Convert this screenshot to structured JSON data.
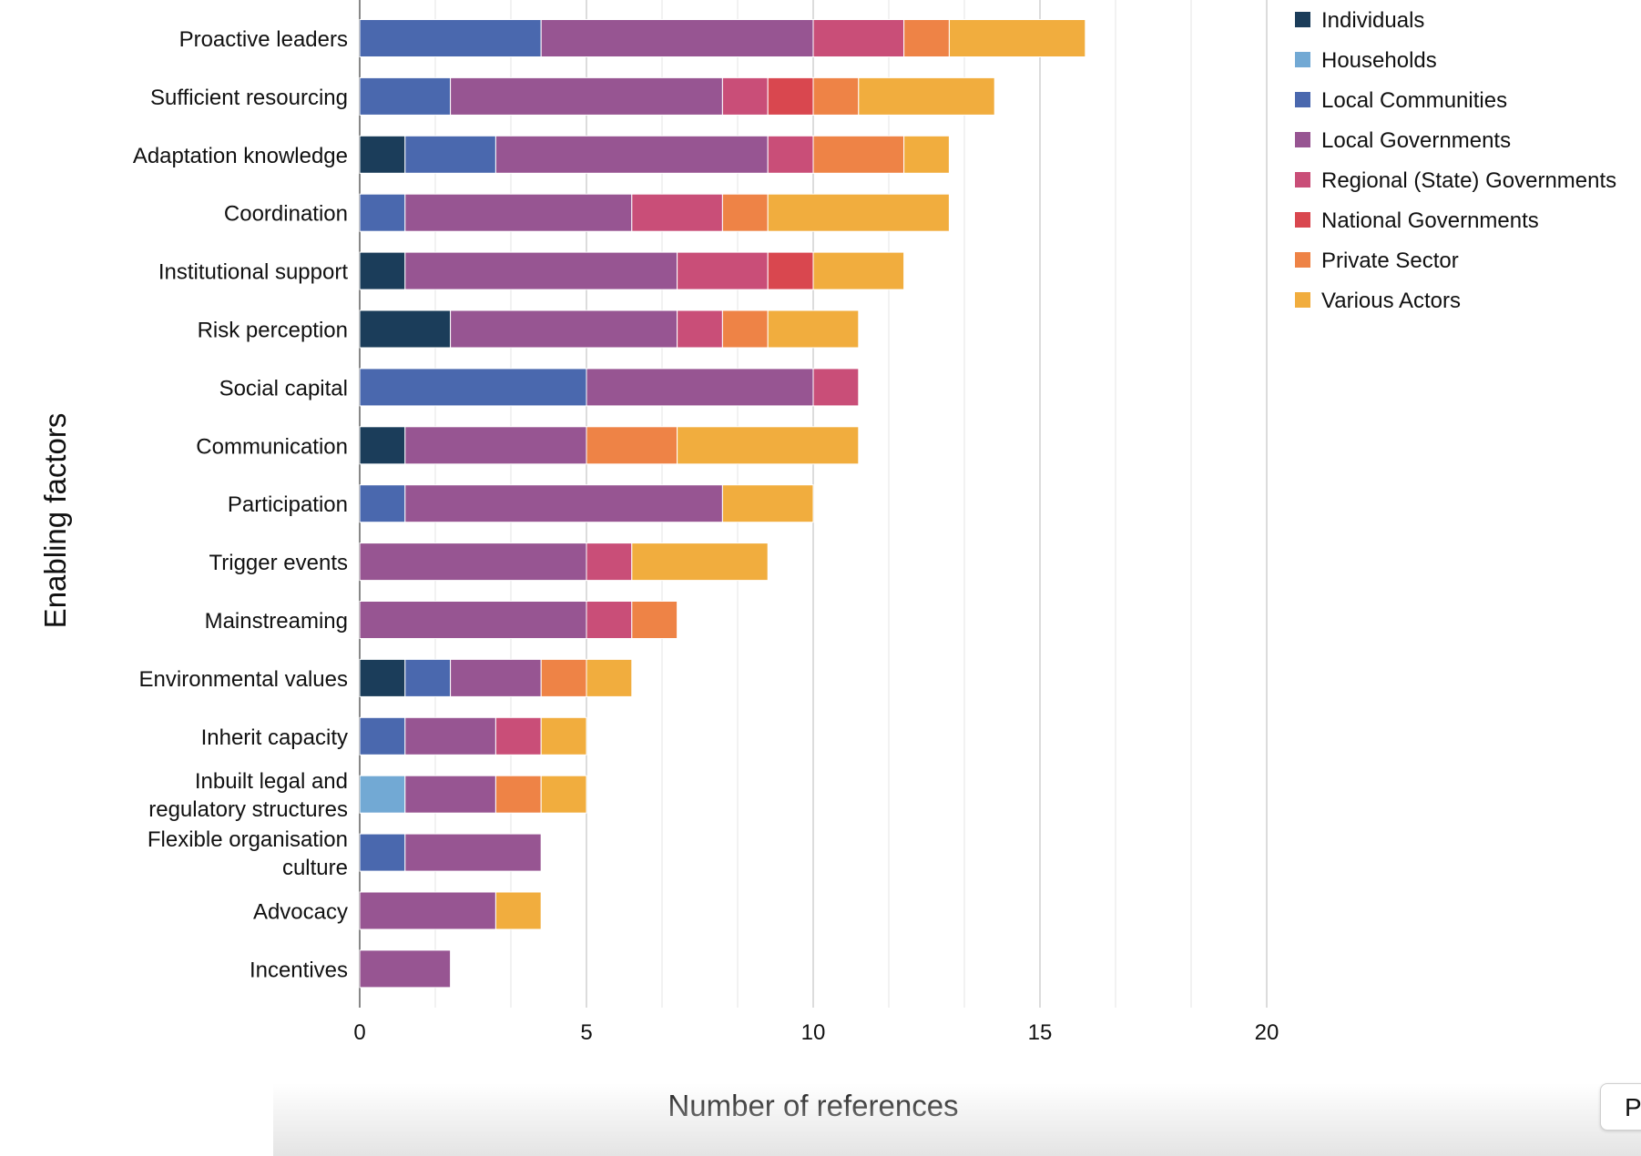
{
  "chart_data": {
    "type": "bar",
    "orientation": "horizontal",
    "stacked": true,
    "xlabel": "Number of references",
    "ylabel": "Enabling factors",
    "xlim": [
      0,
      20
    ],
    "xticks": [
      0,
      5,
      10,
      15,
      20
    ],
    "grid": true,
    "legend_position": "top-right",
    "categories": [
      "Proactive leaders",
      "Sufficient resourcing",
      "Adaptation knowledge",
      "Coordination",
      "Institutional support",
      "Risk perception",
      "Social capital",
      "Communication",
      "Participation",
      "Trigger events",
      "Mainstreaming",
      "Environmental values",
      "Inherit capacity",
      "Inbuilt legal and\nregulatory structures",
      "Flexible organisation\nculture",
      "Advocacy",
      "Incentives"
    ],
    "series": [
      {
        "name": "Individuals",
        "color": "#1b3d5a",
        "values": [
          0,
          0,
          1,
          0,
          1,
          2,
          0,
          1,
          0,
          0,
          0,
          1,
          0,
          0,
          0,
          0,
          0
        ]
      },
      {
        "name": "Households",
        "color": "#72a9d4",
        "values": [
          0,
          0,
          0,
          0,
          0,
          0,
          0,
          0,
          0,
          0,
          0,
          0,
          0,
          1,
          0,
          0,
          0
        ]
      },
      {
        "name": "Local Communities",
        "color": "#4a68ae",
        "values": [
          4,
          2,
          2,
          1,
          0,
          0,
          5,
          0,
          1,
          0,
          0,
          1,
          1,
          0,
          1,
          0,
          0
        ]
      },
      {
        "name": "Local Governments",
        "color": "#975592",
        "values": [
          6,
          6,
          6,
          5,
          6,
          5,
          5,
          4,
          7,
          5,
          5,
          2,
          2,
          2,
          3,
          3,
          2
        ]
      },
      {
        "name": "Regional (State) Governments",
        "color": "#c94e78",
        "values": [
          2,
          1,
          1,
          2,
          2,
          1,
          1,
          0,
          0,
          1,
          1,
          0,
          1,
          0,
          0,
          0,
          0
        ]
      },
      {
        "name": "National Governments",
        "color": "#d9474f",
        "values": [
          0,
          1,
          0,
          0,
          1,
          0,
          0,
          0,
          0,
          0,
          0,
          0,
          0,
          0,
          0,
          0,
          0
        ]
      },
      {
        "name": "Private Sector",
        "color": "#ee8346",
        "values": [
          1,
          1,
          2,
          1,
          0,
          1,
          0,
          2,
          0,
          0,
          1,
          1,
          0,
          1,
          0,
          0,
          0
        ]
      },
      {
        "name": "Various Actors",
        "color": "#f1ad3e",
        "values": [
          3,
          3,
          1,
          4,
          2,
          2,
          0,
          4,
          2,
          3,
          0,
          1,
          1,
          1,
          0,
          1,
          0
        ]
      }
    ]
  },
  "ui": {
    "corner_button_label": "P"
  }
}
